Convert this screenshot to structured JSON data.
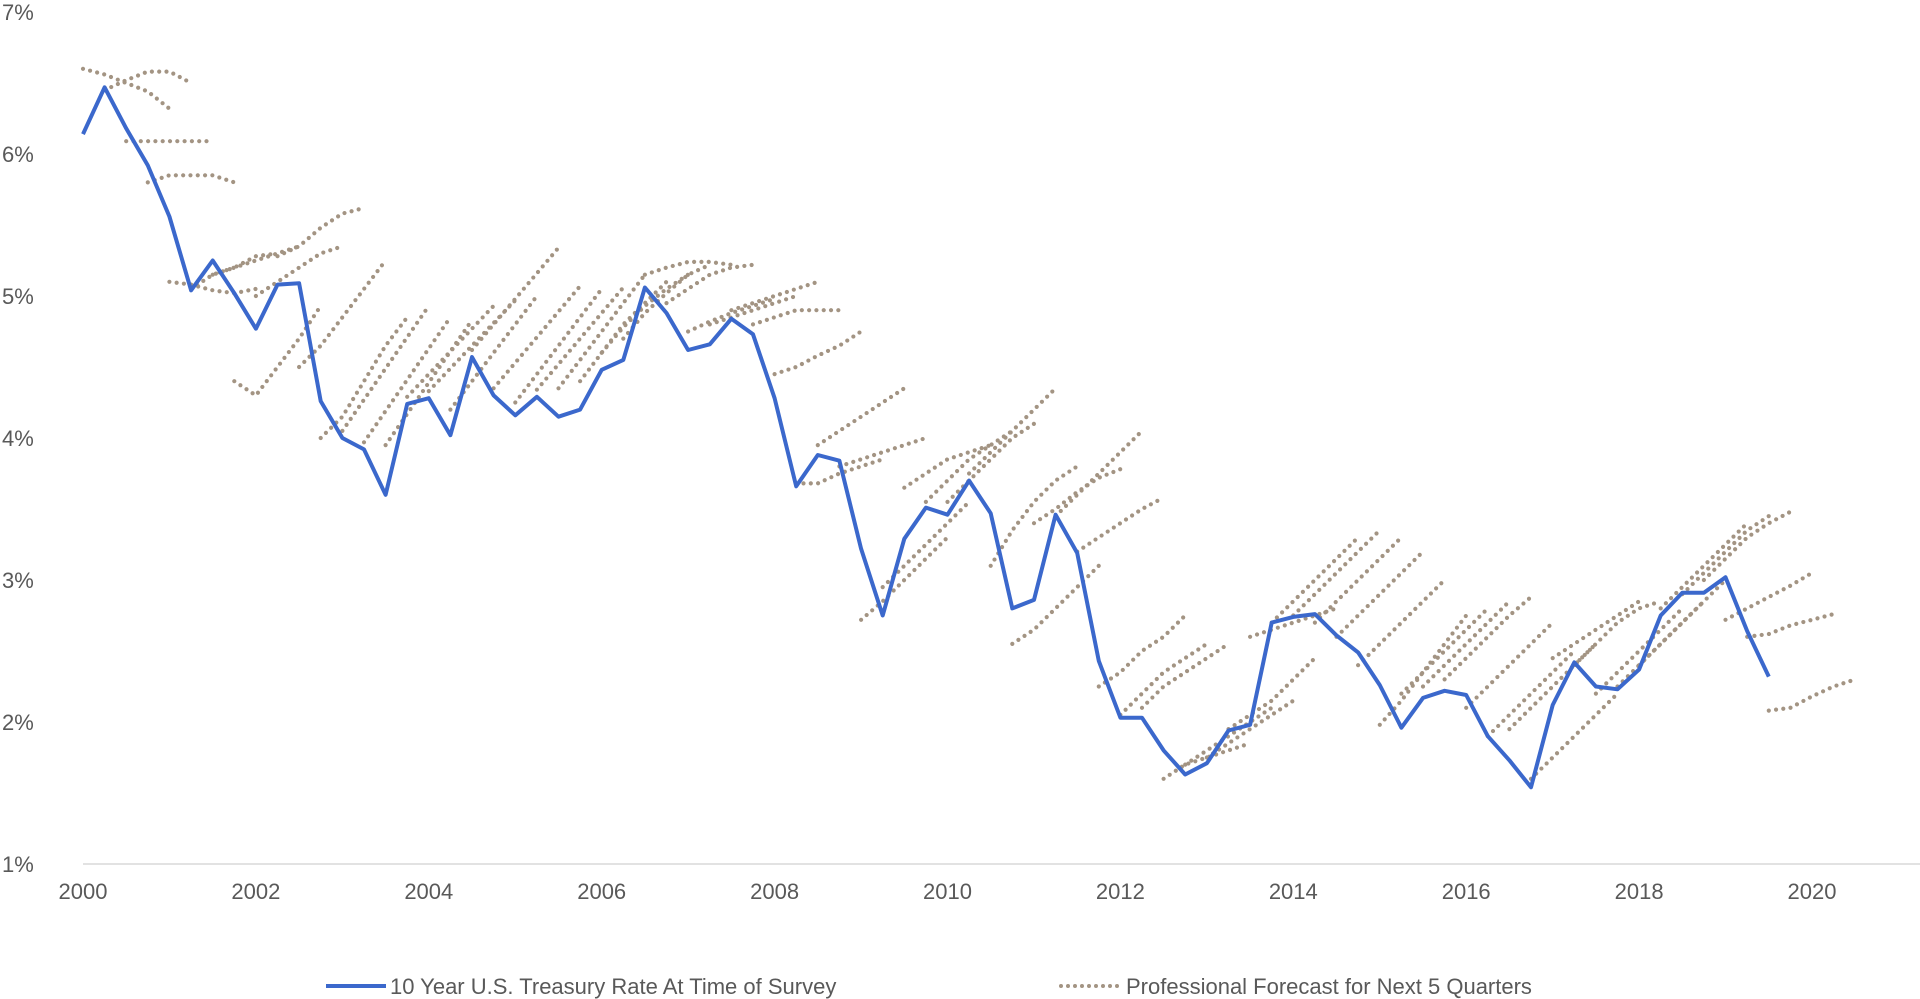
{
  "chart_data": {
    "type": "line",
    "title": "",
    "xlabel": "",
    "ylabel": "",
    "xlim": [
      2000,
      2021.25
    ],
    "ylim": [
      1,
      7
    ],
    "x_ticks": [
      "2000",
      "2002",
      "2004",
      "2006",
      "2008",
      "2010",
      "2012",
      "2014",
      "2016",
      "2018",
      "2020"
    ],
    "y_ticks": [
      "1%",
      "2%",
      "3%",
      "4%",
      "5%",
      "6%",
      "7%"
    ],
    "grid": false,
    "legend_position": "bottom",
    "colors": {
      "actual": "#3b68cc",
      "forecast": "#a39483"
    },
    "series": [
      {
        "name": "10 Year U.S. Treasury Rate At Time of Survey",
        "style": "solid",
        "start": 2000.0,
        "step": 0.25,
        "values": [
          6.14,
          6.47,
          6.18,
          5.92,
          5.56,
          5.04,
          5.25,
          5.02,
          4.77,
          5.08,
          5.09,
          4.26,
          4.0,
          3.92,
          3.6,
          4.24,
          4.28,
          4.02,
          4.57,
          4.3,
          4.16,
          4.29,
          4.15,
          4.2,
          4.48,
          4.55,
          5.06,
          4.88,
          4.62,
          4.66,
          4.84,
          4.73,
          4.28,
          3.66,
          3.88,
          3.84,
          3.22,
          2.75,
          3.29,
          3.51,
          3.46,
          3.7,
          3.47,
          2.8,
          2.86,
          3.46,
          3.19,
          2.43,
          2.03,
          2.03,
          1.8,
          1.63,
          1.71,
          1.94,
          1.98,
          2.7,
          2.74,
          2.76,
          2.61,
          2.49,
          2.26,
          1.96,
          2.17,
          2.22,
          2.19,
          1.9,
          1.73,
          1.54,
          2.12,
          2.42,
          2.25,
          2.23,
          2.37,
          2.75,
          2.91,
          2.91,
          3.02,
          2.64,
          2.32
        ]
      },
      {
        "name": "Professional Forecast for Next 5 Quarters",
        "style": "dotted",
        "step": 0.25,
        "forecasts": [
          {
            "start": 2000.0,
            "values": [
              6.6,
              6.56,
              6.5,
              6.44,
              6.32
            ]
          },
          {
            "start": 2000.25,
            "values": [
              6.45,
              6.52,
              6.58,
              6.58,
              6.5
            ]
          },
          {
            "start": 2000.5,
            "values": [
              6.09,
              6.09,
              6.09,
              6.09,
              6.09
            ]
          },
          {
            "start": 2000.75,
            "values": [
              5.8,
              5.85,
              5.85,
              5.85,
              5.8
            ]
          },
          {
            "start": 2001.0,
            "values": [
              5.1,
              5.08,
              5.04,
              5.02,
              5.05
            ]
          },
          {
            "start": 2001.25,
            "values": [
              5.05,
              5.15,
              5.2,
              5.28,
              5.3
            ]
          },
          {
            "start": 2001.5,
            "values": [
              5.15,
              5.2,
              5.25,
              5.3,
              5.35
            ]
          },
          {
            "start": 2001.75,
            "values": [
              4.4,
              4.3,
              4.5,
              4.7,
              4.93
            ]
          },
          {
            "start": 2002.0,
            "values": [
              5.0,
              5.1,
              5.2,
              5.3,
              5.35
            ]
          },
          {
            "start": 2002.25,
            "values": [
              5.28,
              5.35,
              5.48,
              5.58,
              5.62
            ]
          },
          {
            "start": 2002.5,
            "values": [
              4.5,
              4.65,
              4.85,
              5.05,
              5.25
            ]
          },
          {
            "start": 2002.75,
            "values": [
              4.0,
              4.15,
              4.4,
              4.65,
              4.85
            ]
          },
          {
            "start": 2003.0,
            "values": [
              4.05,
              4.27,
              4.49,
              4.71,
              4.93
            ]
          },
          {
            "start": 2003.25,
            "values": [
              3.97,
              4.19,
              4.41,
              4.63,
              4.85
            ]
          },
          {
            "start": 2003.5,
            "values": [
              3.95,
              4.17,
              4.39,
              4.61,
              4.83
            ]
          },
          {
            "start": 2003.75,
            "values": [
              4.29,
              4.45,
              4.61,
              4.77,
              4.93
            ]
          },
          {
            "start": 2004.0,
            "values": [
              4.33,
              4.49,
              4.65,
              4.81,
              4.97
            ]
          },
          {
            "start": 2004.25,
            "values": [
              4.2,
              4.4,
              4.6,
              4.8,
              5.0
            ]
          },
          {
            "start": 2004.5,
            "values": [
              4.62,
              4.8,
              4.98,
              5.16,
              5.34
            ]
          },
          {
            "start": 2004.75,
            "values": [
              4.35,
              4.53,
              4.71,
              4.89,
              5.07
            ]
          },
          {
            "start": 2005.0,
            "values": [
              4.25,
              4.45,
              4.65,
              4.85,
              5.05
            ]
          },
          {
            "start": 2005.25,
            "values": [
              4.34,
              4.52,
              4.7,
              4.88,
              5.06
            ]
          },
          {
            "start": 2005.5,
            "values": [
              4.35,
              4.55,
              4.75,
              4.95,
              5.15
            ]
          },
          {
            "start": 2005.75,
            "values": [
              4.4,
              4.6,
              4.8,
              4.95,
              5.1
            ]
          },
          {
            "start": 2006.0,
            "values": [
              4.6,
              4.78,
              4.93,
              5.05,
              5.15
            ]
          },
          {
            "start": 2006.25,
            "values": [
              4.7,
              4.88,
              5.02,
              5.15,
              5.22
            ]
          },
          {
            "start": 2006.5,
            "values": [
              5.15,
              5.2,
              5.24,
              5.24,
              5.22
            ]
          },
          {
            "start": 2006.75,
            "values": [
              4.95,
              5.05,
              5.15,
              5.2,
              5.22
            ]
          },
          {
            "start": 2007.0,
            "values": [
              4.75,
              4.82,
              4.88,
              4.93,
              4.98
            ]
          },
          {
            "start": 2007.25,
            "values": [
              4.8,
              4.85,
              4.9,
              4.95,
              5.0
            ]
          },
          {
            "start": 2007.5,
            "values": [
              4.9,
              4.95,
              5.0,
              5.05,
              5.1
            ]
          },
          {
            "start": 2007.75,
            "values": [
              4.8,
              4.85,
              4.9,
              4.9,
              4.9
            ]
          },
          {
            "start": 2008.0,
            "values": [
              4.45,
              4.5,
              4.58,
              4.65,
              4.75
            ]
          },
          {
            "start": 2008.25,
            "values": [
              3.68,
              3.68,
              3.75,
              3.8,
              3.85
            ]
          },
          {
            "start": 2008.5,
            "values": [
              3.95,
              4.05,
              4.15,
              4.25,
              4.35
            ]
          },
          {
            "start": 2008.75,
            "values": [
              3.8,
              3.85,
              3.9,
              3.95,
              4.0
            ]
          },
          {
            "start": 2009.0,
            "values": [
              2.72,
              2.85,
              3.0,
              3.15,
              3.3
            ]
          },
          {
            "start": 2009.25,
            "values": [
              2.95,
              3.1,
              3.25,
              3.4,
              3.55
            ]
          },
          {
            "start": 2009.5,
            "values": [
              3.65,
              3.75,
              3.85,
              3.9,
              3.95
            ]
          },
          {
            "start": 2009.75,
            "values": [
              3.55,
              3.7,
              3.85,
              3.95,
              4.05
            ]
          },
          {
            "start": 2010.0,
            "values": [
              3.55,
              3.7,
              3.85,
              4.0,
              4.1
            ]
          },
          {
            "start": 2010.25,
            "values": [
              3.75,
              3.9,
              4.05,
              4.2,
              4.35
            ]
          },
          {
            "start": 2010.5,
            "values": [
              3.1,
              3.35,
              3.55,
              3.7,
              3.8
            ]
          },
          {
            "start": 2010.75,
            "values": [
              2.55,
              2.65,
              2.8,
              2.95,
              3.1
            ]
          },
          {
            "start": 2011.0,
            "values": [
              3.4,
              3.5,
              3.62,
              3.72,
              3.78
            ]
          },
          {
            "start": 2011.25,
            "values": [
              3.45,
              3.6,
              3.75,
              3.9,
              4.05
            ]
          },
          {
            "start": 2011.5,
            "values": [
              3.2,
              3.3,
              3.4,
              3.5,
              3.58
            ]
          },
          {
            "start": 2011.75,
            "values": [
              2.25,
              2.35,
              2.5,
              2.6,
              2.75
            ]
          },
          {
            "start": 2012.0,
            "values": [
              2.05,
              2.2,
              2.35,
              2.45,
              2.55
            ]
          },
          {
            "start": 2012.25,
            "values": [
              2.1,
              2.25,
              2.35,
              2.45,
              2.55
            ]
          },
          {
            "start": 2012.5,
            "values": [
              1.6,
              1.7,
              1.75,
              1.8,
              1.85
            ]
          },
          {
            "start": 2012.75,
            "values": [
              1.7,
              1.8,
              1.9,
              2.0,
              2.1
            ]
          },
          {
            "start": 2013.0,
            "values": [
              1.75,
              1.85,
              1.95,
              2.05,
              2.15
            ]
          },
          {
            "start": 2013.25,
            "values": [
              1.95,
              2.05,
              2.15,
              2.3,
              2.45
            ]
          },
          {
            "start": 2013.5,
            "values": [
              2.6,
              2.65,
              2.7,
              2.75,
              2.8
            ]
          },
          {
            "start": 2013.75,
            "values": [
              2.7,
              2.85,
              3.0,
              3.15,
              3.3
            ]
          },
          {
            "start": 2014.0,
            "values": [
              2.75,
              2.9,
              3.05,
              3.2,
              3.35
            ]
          },
          {
            "start": 2014.25,
            "values": [
              2.7,
              2.85,
              3.0,
              3.15,
              3.3
            ]
          },
          {
            "start": 2014.5,
            "values": [
              2.6,
              2.75,
              2.9,
              3.05,
              3.2
            ]
          },
          {
            "start": 2014.75,
            "values": [
              2.4,
              2.55,
              2.7,
              2.85,
              3.0
            ]
          },
          {
            "start": 2015.0,
            "values": [
              1.98,
              2.15,
              2.35,
              2.55,
              2.75
            ]
          },
          {
            "start": 2015.25,
            "values": [
              2.2,
              2.35,
              2.5,
              2.65,
              2.8
            ]
          },
          {
            "start": 2015.5,
            "values": [
              2.25,
              2.4,
              2.55,
              2.7,
              2.85
            ]
          },
          {
            "start": 2015.75,
            "values": [
              2.3,
              2.45,
              2.6,
              2.75,
              2.88
            ]
          },
          {
            "start": 2016.0,
            "values": [
              2.1,
              2.25,
              2.4,
              2.55,
              2.7
            ]
          },
          {
            "start": 2016.25,
            "values": [
              1.9,
              2.05,
              2.2,
              2.35,
              2.5
            ]
          },
          {
            "start": 2016.5,
            "values": [
              1.95,
              2.1,
              2.25,
              2.4,
              2.55
            ]
          },
          {
            "start": 2016.75,
            "values": [
              1.6,
              1.75,
              1.9,
              2.05,
              2.2
            ]
          },
          {
            "start": 2017.0,
            "values": [
              2.45,
              2.55,
              2.65,
              2.75,
              2.85
            ]
          },
          {
            "start": 2017.25,
            "values": [
              2.4,
              2.55,
              2.7,
              2.8,
              2.85
            ]
          },
          {
            "start": 2017.5,
            "values": [
              2.2,
              2.35,
              2.5,
              2.65,
              2.8
            ]
          },
          {
            "start": 2017.75,
            "values": [
              2.25,
              2.4,
              2.55,
              2.7,
              2.85
            ]
          },
          {
            "start": 2018.0,
            "values": [
              2.4,
              2.55,
              2.7,
              2.85,
              3.0
            ]
          },
          {
            "start": 2018.25,
            "values": [
              2.8,
              2.95,
              3.1,
              3.25,
              3.4
            ]
          },
          {
            "start": 2018.5,
            "values": [
              2.9,
              3.05,
              3.2,
              3.35,
              3.45
            ]
          },
          {
            "start": 2018.75,
            "values": [
              3.0,
              3.15,
              3.3,
              3.4,
              3.48
            ]
          },
          {
            "start": 2019.0,
            "values": [
              2.72,
              2.8,
              2.88,
              2.96,
              3.05
            ]
          },
          {
            "start": 2019.25,
            "values": [
              2.6,
              2.62,
              2.68,
              2.72,
              2.76
            ]
          },
          {
            "start": 2019.5,
            "values": [
              2.08,
              2.1,
              2.18,
              2.25,
              2.3
            ]
          }
        ]
      }
    ],
    "legend": {
      "actual_label": "10 Year U.S. Treasury Rate At Time of Survey",
      "forecast_label": "Professional Forecast for Next 5 Quarters"
    }
  }
}
